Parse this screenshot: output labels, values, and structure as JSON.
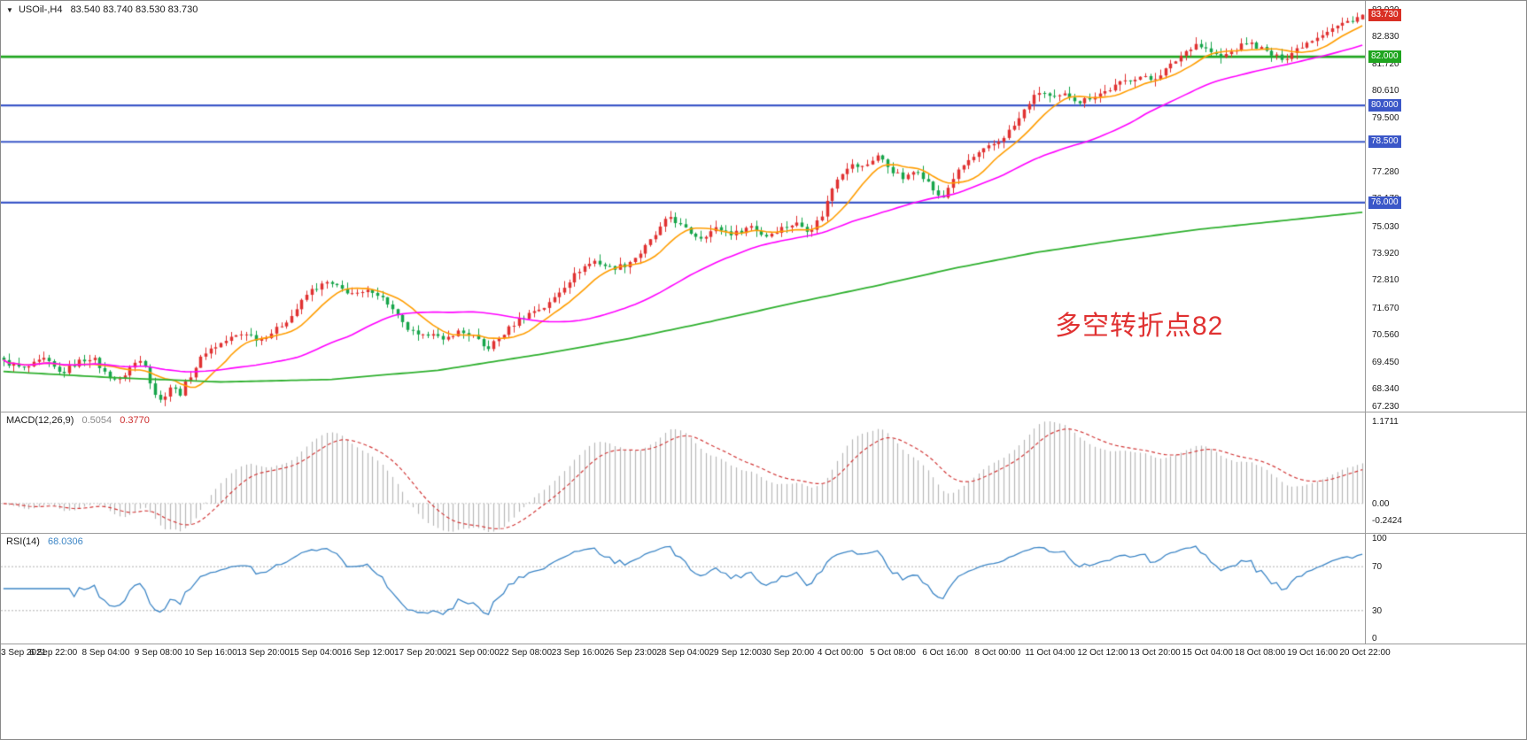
{
  "header": {
    "symbol_period": "USOil-,H4",
    "ohlc": "83.540 83.740 83.530 83.730"
  },
  "annotation": {
    "text": "多空转折点82",
    "color": "#e03131"
  },
  "chart_data": {
    "type": "candlestick",
    "title": "USOil-,H4",
    "x_labels": [
      "3 Sep 2021",
      "6 Sep 22:00",
      "8 Sep 04:00",
      "9 Sep 08:00",
      "10 Sep 16:00",
      "13 Sep 20:00",
      "15 Sep 04:00",
      "16 Sep 12:00",
      "17 Sep 20:00",
      "21 Sep 00:00",
      "22 Sep 08:00",
      "23 Sep 16:00",
      "26 Sep 23:00",
      "28 Sep 04:00",
      "29 Sep 12:00",
      "30 Sep 20:00",
      "4 Oct 00:00",
      "5 Oct 08:00",
      "6 Oct 16:00",
      "8 Oct 00:00",
      "11 Oct 04:00",
      "12 Oct 12:00",
      "13 Oct 20:00",
      "15 Oct 04:00",
      "18 Oct 08:00",
      "19 Oct 16:00",
      "20 Oct 22:00"
    ],
    "main": {
      "price_min": 67.4,
      "price_max": 84.3,
      "y_ticks": [
        "83.920",
        "82.830",
        "81.720",
        "80.610",
        "79.500",
        "78.390",
        "77.280",
        "76.170",
        "75.030",
        "73.920",
        "72.810",
        "71.670",
        "70.560",
        "69.450",
        "68.340",
        "67.230"
      ],
      "current_price": "83.730",
      "current_price_color": "#d93025",
      "current_bar": {
        "o": 83.54,
        "h": 83.74,
        "l": 83.53,
        "c": 83.73
      },
      "hlines": [
        {
          "value": 82.0,
          "label": "82.000",
          "color": "#1fa51f",
          "width": 2.6
        },
        {
          "value": 80.0,
          "label": "80.000",
          "color": "#3b57c8",
          "width": 2.2
        },
        {
          "value": 78.5,
          "label": "78.500",
          "color": "#3b57c8",
          "width": 2.2
        },
        {
          "value": 76.0,
          "label": "76.000",
          "color": "#3b57c8",
          "width": 2.2
        }
      ],
      "candles": {
        "count": 270,
        "up_color": "#e03131",
        "down_color": "#16a54a"
      },
      "close_waypoints": [
        [
          0.0,
          69.45
        ],
        [
          0.015,
          69.15
        ],
        [
          0.03,
          69.55
        ],
        [
          0.042,
          68.95
        ],
        [
          0.055,
          69.45
        ],
        [
          0.065,
          69.65
        ],
        [
          0.075,
          68.95
        ],
        [
          0.085,
          68.65
        ],
        [
          0.095,
          69.35
        ],
        [
          0.103,
          69.55
        ],
        [
          0.11,
          68.25
        ],
        [
          0.116,
          67.8
        ],
        [
          0.122,
          68.45
        ],
        [
          0.13,
          68.15
        ],
        [
          0.138,
          68.95
        ],
        [
          0.148,
          69.85
        ],
        [
          0.158,
          70.15
        ],
        [
          0.168,
          70.45
        ],
        [
          0.178,
          70.65
        ],
        [
          0.188,
          70.35
        ],
        [
          0.2,
          70.75
        ],
        [
          0.212,
          71.35
        ],
        [
          0.225,
          72.35
        ],
        [
          0.238,
          72.7
        ],
        [
          0.25,
          72.4
        ],
        [
          0.26,
          72.2
        ],
        [
          0.272,
          72.4
        ],
        [
          0.282,
          71.9
        ],
        [
          0.295,
          70.9
        ],
        [
          0.307,
          70.4
        ],
        [
          0.315,
          70.75
        ],
        [
          0.323,
          70.25
        ],
        [
          0.333,
          70.7
        ],
        [
          0.345,
          70.55
        ],
        [
          0.355,
          69.95
        ],
        [
          0.363,
          70.35
        ],
        [
          0.378,
          71.15
        ],
        [
          0.39,
          71.55
        ],
        [
          0.4,
          71.75
        ],
        [
          0.412,
          72.55
        ],
        [
          0.425,
          73.3
        ],
        [
          0.435,
          73.6
        ],
        [
          0.447,
          73.3
        ],
        [
          0.458,
          73.45
        ],
        [
          0.468,
          73.9
        ],
        [
          0.48,
          74.7
        ],
        [
          0.49,
          75.45
        ],
        [
          0.5,
          74.95
        ],
        [
          0.512,
          74.55
        ],
        [
          0.525,
          74.95
        ],
        [
          0.537,
          74.7
        ],
        [
          0.55,
          75.05
        ],
        [
          0.56,
          74.6
        ],
        [
          0.572,
          74.95
        ],
        [
          0.583,
          75.15
        ],
        [
          0.593,
          74.85
        ],
        [
          0.602,
          75.45
        ],
        [
          0.612,
          76.95
        ],
        [
          0.622,
          77.55
        ],
        [
          0.633,
          77.45
        ],
        [
          0.643,
          77.95
        ],
        [
          0.653,
          77.35
        ],
        [
          0.663,
          76.95
        ],
        [
          0.672,
          77.4
        ],
        [
          0.682,
          76.7
        ],
        [
          0.69,
          76.05
        ],
        [
          0.698,
          76.95
        ],
        [
          0.708,
          77.65
        ],
        [
          0.72,
          78.1
        ],
        [
          0.733,
          78.55
        ],
        [
          0.745,
          79.25
        ],
        [
          0.755,
          80.15
        ],
        [
          0.763,
          80.6
        ],
        [
          0.772,
          80.25
        ],
        [
          0.782,
          80.45
        ],
        [
          0.792,
          80.15
        ],
        [
          0.802,
          80.4
        ],
        [
          0.812,
          80.6
        ],
        [
          0.823,
          80.95
        ],
        [
          0.835,
          81.2
        ],
        [
          0.845,
          81.05
        ],
        [
          0.857,
          81.55
        ],
        [
          0.868,
          82.15
        ],
        [
          0.877,
          82.55
        ],
        [
          0.887,
          82.25
        ],
        [
          0.895,
          81.95
        ],
        [
          0.905,
          82.25
        ],
        [
          0.915,
          82.6
        ],
        [
          0.925,
          82.35
        ],
        [
          0.935,
          82.0
        ],
        [
          0.943,
          81.95
        ],
        [
          0.952,
          82.35
        ],
        [
          0.962,
          82.7
        ],
        [
          0.973,
          83.05
        ],
        [
          0.985,
          83.35
        ],
        [
          1.0,
          83.73
        ]
      ],
      "ma_lines": [
        {
          "name": "ma-fast",
          "type": "sma",
          "period": 10,
          "color": "#ff9d00",
          "width": 1.6
        },
        {
          "name": "ma-mid",
          "type": "sma",
          "period": 40,
          "color": "#ff00ff",
          "width": 1.6
        },
        {
          "name": "ma-slow",
          "type": "waypoints",
          "color": "#2fb02f",
          "width": 1.8,
          "points": [
            [
              0,
              69.05
            ],
            [
              0.08,
              68.8
            ],
            [
              0.16,
              68.62
            ],
            [
              0.24,
              68.72
            ],
            [
              0.32,
              69.1
            ],
            [
              0.4,
              69.8
            ],
            [
              0.46,
              70.4
            ],
            [
              0.52,
              71.1
            ],
            [
              0.58,
              71.85
            ],
            [
              0.64,
              72.55
            ],
            [
              0.7,
              73.3
            ],
            [
              0.76,
              73.95
            ],
            [
              0.82,
              74.45
            ],
            [
              0.88,
              74.9
            ],
            [
              0.94,
              75.25
            ],
            [
              1.0,
              75.6
            ]
          ]
        }
      ]
    },
    "macd": {
      "label": "MACD(12,26,9)",
      "value_main": "0.5054",
      "value_signal": "0.3770",
      "params": {
        "fast": 12,
        "slow": 26,
        "signal": 9
      },
      "y_ticks": [
        "1.1711",
        "0.00",
        "-0.2424"
      ],
      "range": [
        -0.42,
        1.3
      ],
      "display_gain": 1.3,
      "histogram_color": "#b8b8b8",
      "signal_color": "#d23a3a",
      "zero_line_color": "#c8c8c8"
    },
    "rsi": {
      "label": "RSI(14)",
      "value": "68.0306",
      "period": 14,
      "y_ticks": [
        "100",
        "70",
        "30",
        "0"
      ],
      "levels": [
        70,
        30
      ],
      "range": [
        0,
        100
      ],
      "line_color": "#3d86c6",
      "level_color": "#b0b0b0"
    }
  }
}
